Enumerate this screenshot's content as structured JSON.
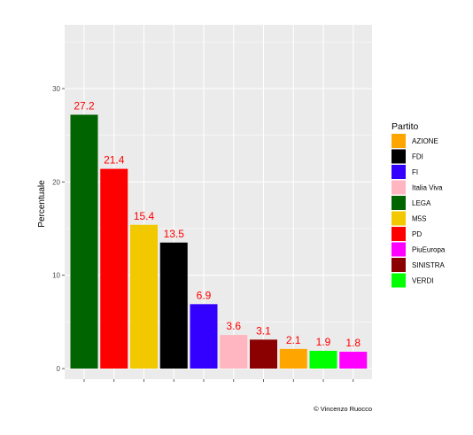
{
  "chart_data": {
    "type": "bar",
    "categories": [
      "LEGA",
      "PD",
      "M5S",
      "FDI",
      "FI",
      "Italia Viva",
      "SINISTRA",
      "AZIONE",
      "VERDI",
      "PiuEuropa"
    ],
    "values": [
      27.2,
      21.4,
      15.4,
      13.5,
      6.9,
      3.6,
      3.1,
      2.1,
      1.9,
      1.8
    ],
    "data_labels": [
      "27.2",
      "21.4",
      "15.4",
      "13.5",
      "6.9",
      "3.6",
      "3.1",
      "2.1",
      "1.9",
      "1.8"
    ],
    "bar_colors": [
      "#006400",
      "#ff0000",
      "#f2c800",
      "#000000",
      "#3300ff",
      "#ffb6c1",
      "#8b0000",
      "#ffa500",
      "#00ff00",
      "#ff00ff"
    ],
    "xlabel": "",
    "ylabel": "Percentuale",
    "ylim": [
      0,
      37.5
    ],
    "yticks": [
      0,
      10,
      20,
      30
    ],
    "ytick_labels": [
      "0",
      "10",
      "20",
      "30"
    ],
    "grid": true,
    "data_label_color": "#ff0000",
    "legend": {
      "title": "Partito",
      "placement": "right",
      "entries": [
        {
          "label": "AZIONE",
          "color": "#ffa500"
        },
        {
          "label": "FDI",
          "color": "#000000"
        },
        {
          "label": "FI",
          "color": "#3300ff"
        },
        {
          "label": "Italia Viva",
          "color": "#ffb6c1"
        },
        {
          "label": "LEGA",
          "color": "#006400"
        },
        {
          "label": "M5S",
          "color": "#f2c800"
        },
        {
          "label": "PD",
          "color": "#ff0000"
        },
        {
          "label": "PiuEuropa",
          "color": "#ff00ff"
        },
        {
          "label": "SINISTRA",
          "color": "#8b0000"
        },
        {
          "label": "VERDI",
          "color": "#00ff00"
        }
      ]
    },
    "caption": "© Vincenzo Ruocco"
  }
}
